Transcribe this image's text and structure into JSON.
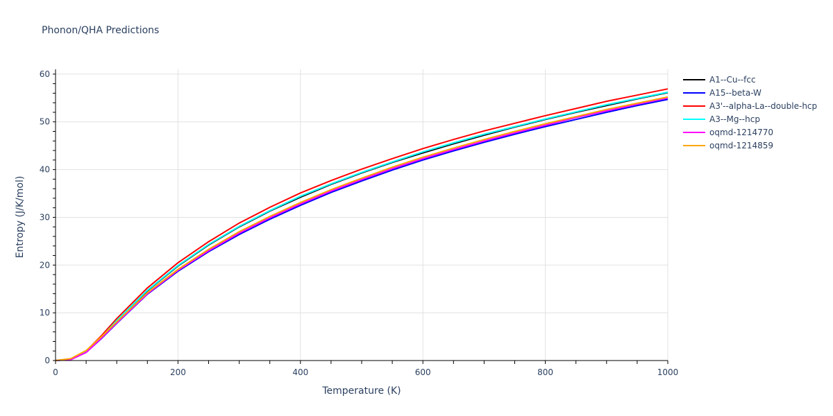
{
  "title": "Phonon/QHA Predictions",
  "chart_data": {
    "type": "line",
    "title": "Phonon/QHA Predictions",
    "xlabel": "Temperature (K)",
    "ylabel": "Entropy (J/K/mol)",
    "xlim": [
      0,
      1000
    ],
    "ylim": [
      0,
      61
    ],
    "xticks": [
      0,
      200,
      400,
      600,
      800,
      1000
    ],
    "yticks": [
      0,
      10,
      20,
      30,
      40,
      50,
      60
    ],
    "grid": true,
    "legend_position": "right",
    "x": [
      0,
      25,
      50,
      75,
      100,
      150,
      200,
      250,
      300,
      350,
      400,
      450,
      500,
      550,
      600,
      650,
      700,
      750,
      800,
      850,
      900,
      950,
      1000
    ],
    "series": [
      {
        "name": "A1--Cu--fcc",
        "color": "#000000",
        "values": [
          0,
          0.3,
          2.0,
          5.0,
          8.3,
          14.6,
          19.8,
          24.2,
          28.0,
          31.3,
          34.2,
          36.9,
          39.3,
          41.5,
          43.5,
          45.4,
          47.2,
          48.9,
          50.5,
          52.0,
          53.4,
          54.8,
          56.1
        ]
      },
      {
        "name": "A15--beta-W",
        "color": "#0000ff",
        "values": [
          0,
          0.2,
          1.7,
          4.6,
          7.8,
          13.9,
          18.7,
          22.8,
          26.4,
          29.6,
          32.5,
          35.2,
          37.6,
          39.9,
          42.0,
          43.9,
          45.7,
          47.4,
          49.0,
          50.5,
          52.0,
          53.4,
          54.7
        ]
      },
      {
        "name": "A3'--alpha-La--double-hcp",
        "color": "#ff0000",
        "values": [
          0,
          0.3,
          2.0,
          5.2,
          8.8,
          15.2,
          20.5,
          24.9,
          28.8,
          32.1,
          35.1,
          37.7,
          40.1,
          42.3,
          44.4,
          46.3,
          48.1,
          49.7,
          51.3,
          52.8,
          54.3,
          55.6,
          56.9
        ]
      },
      {
        "name": "A3--Mg--hcp",
        "color": "#00ffff",
        "values": [
          0,
          0.2,
          1.8,
          4.9,
          8.4,
          14.7,
          19.9,
          24.3,
          28.1,
          31.4,
          34.4,
          37.0,
          39.4,
          41.6,
          43.7,
          45.6,
          47.4,
          49.0,
          50.6,
          52.1,
          53.6,
          54.9,
          56.2
        ]
      },
      {
        "name": "oqmd-1214770",
        "color": "#ff00ff",
        "values": [
          0,
          0.2,
          1.7,
          4.7,
          7.9,
          14.0,
          18.9,
          23.0,
          26.7,
          29.9,
          32.8,
          35.5,
          37.9,
          40.2,
          42.3,
          44.2,
          46.0,
          47.7,
          49.3,
          50.9,
          52.3,
          53.7,
          55.0
        ]
      },
      {
        "name": "oqmd-1214859",
        "color": "#ffa500",
        "values": [
          0,
          0.4,
          2.1,
          5.0,
          8.1,
          14.2,
          19.1,
          23.3,
          27.0,
          30.2,
          33.1,
          35.8,
          38.2,
          40.5,
          42.6,
          44.5,
          46.3,
          48.0,
          49.6,
          51.1,
          52.6,
          53.9,
          55.2
        ]
      }
    ]
  }
}
